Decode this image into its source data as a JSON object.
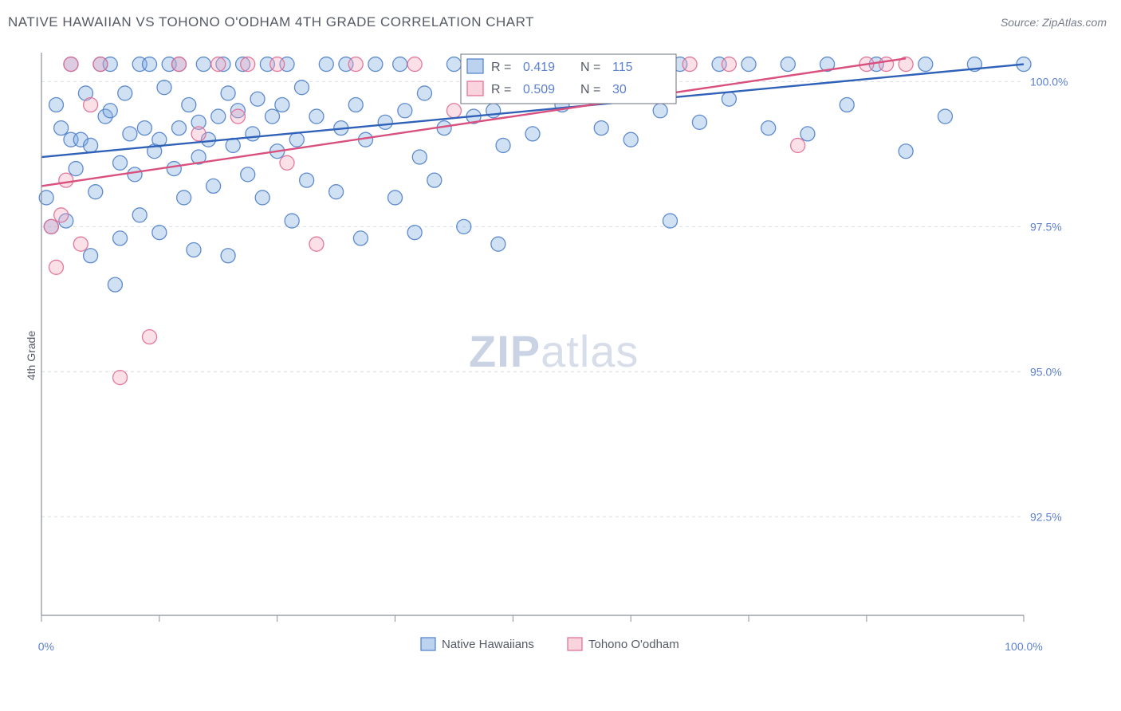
{
  "chart": {
    "type": "scatter",
    "title": "NATIVE HAWAIIAN VS TOHONO O'ODHAM 4TH GRADE CORRELATION CHART",
    "source_label": "Source: ZipAtlas.com",
    "ylabel": "4th Grade",
    "watermark_bold": "ZIP",
    "watermark_light": "atlas",
    "background_color": "#ffffff",
    "grid_color": "#d9dde3",
    "axis_color": "#8a8f99",
    "tick_label_color": "#5b7fd1",
    "xlim": [
      0,
      100
    ],
    "ylim": [
      90.8,
      100.5
    ],
    "x_tick_positions": [
      0,
      12,
      24,
      36,
      48,
      60,
      72,
      84,
      100
    ],
    "x_tick_labels_shown": {
      "0": "0.0%",
      "100": "100.0%"
    },
    "y_ticks": [
      {
        "v": 100.0,
        "label": "100.0%"
      },
      {
        "v": 97.5,
        "label": "97.5%"
      },
      {
        "v": 95.0,
        "label": "95.0%"
      },
      {
        "v": 92.5,
        "label": "92.5%"
      }
    ],
    "marker_radius": 9,
    "series": [
      {
        "name": "Native Hawaiians",
        "fill": "#7aa8e0",
        "stroke": "#4f7fc9",
        "line_color": "#2f61b8",
        "R": "0.419",
        "N": "115",
        "trend": {
          "x1": 0,
          "y1": 98.7,
          "x2": 100,
          "y2": 100.3
        },
        "points": [
          [
            0.5,
            98.0
          ],
          [
            1,
            97.5
          ],
          [
            1.5,
            99.6
          ],
          [
            2,
            99.2
          ],
          [
            2.5,
            97.6
          ],
          [
            3,
            99.0
          ],
          [
            3,
            100.3
          ],
          [
            3.5,
            98.5
          ],
          [
            4,
            99.0
          ],
          [
            4.5,
            99.8
          ],
          [
            5,
            98.9
          ],
          [
            5,
            97.0
          ],
          [
            5.5,
            98.1
          ],
          [
            6,
            100.3
          ],
          [
            6.5,
            99.4
          ],
          [
            7,
            99.5
          ],
          [
            7,
            100.3
          ],
          [
            7.5,
            96.5
          ],
          [
            8,
            97.3
          ],
          [
            8,
            98.6
          ],
          [
            8.5,
            99.8
          ],
          [
            9,
            99.1
          ],
          [
            9.5,
            98.4
          ],
          [
            10,
            100.3
          ],
          [
            10,
            97.7
          ],
          [
            10.5,
            99.2
          ],
          [
            11,
            100.3
          ],
          [
            11.5,
            98.8
          ],
          [
            12,
            99.0
          ],
          [
            12,
            97.4
          ],
          [
            12.5,
            99.9
          ],
          [
            13,
            100.3
          ],
          [
            13.5,
            98.5
          ],
          [
            14,
            99.2
          ],
          [
            14,
            100.3
          ],
          [
            14.5,
            98.0
          ],
          [
            15,
            99.6
          ],
          [
            15.5,
            97.1
          ],
          [
            16,
            99.3
          ],
          [
            16,
            98.7
          ],
          [
            16.5,
            100.3
          ],
          [
            17,
            99.0
          ],
          [
            17.5,
            98.2
          ],
          [
            18,
            99.4
          ],
          [
            18.5,
            100.3
          ],
          [
            19,
            99.8
          ],
          [
            19,
            97.0
          ],
          [
            19.5,
            98.9
          ],
          [
            20,
            99.5
          ],
          [
            20.5,
            100.3
          ],
          [
            21,
            98.4
          ],
          [
            21.5,
            99.1
          ],
          [
            22,
            99.7
          ],
          [
            22.5,
            98.0
          ],
          [
            23,
            100.3
          ],
          [
            23.5,
            99.4
          ],
          [
            24,
            98.8
          ],
          [
            24.5,
            99.6
          ],
          [
            25,
            100.3
          ],
          [
            25.5,
            97.6
          ],
          [
            26,
            99.0
          ],
          [
            26.5,
            99.9
          ],
          [
            27,
            98.3
          ],
          [
            28,
            99.4
          ],
          [
            29,
            100.3
          ],
          [
            30,
            98.1
          ],
          [
            30.5,
            99.2
          ],
          [
            31,
            100.3
          ],
          [
            32,
            99.6
          ],
          [
            32.5,
            97.3
          ],
          [
            33,
            99.0
          ],
          [
            34,
            100.3
          ],
          [
            35,
            99.3
          ],
          [
            36,
            98.0
          ],
          [
            36.5,
            100.3
          ],
          [
            37,
            99.5
          ],
          [
            38,
            97.4
          ],
          [
            38.5,
            98.7
          ],
          [
            39,
            99.8
          ],
          [
            40,
            98.3
          ],
          [
            41,
            99.2
          ],
          [
            42,
            100.3
          ],
          [
            43,
            97.5
          ],
          [
            44,
            99.4
          ],
          [
            45,
            100.3
          ],
          [
            46,
            99.5
          ],
          [
            46.5,
            97.2
          ],
          [
            47,
            98.9
          ],
          [
            48,
            100.3
          ],
          [
            50,
            99.1
          ],
          [
            52,
            100.3
          ],
          [
            53,
            99.6
          ],
          [
            55,
            100.3
          ],
          [
            57,
            99.2
          ],
          [
            58,
            100.3
          ],
          [
            60,
            99.0
          ],
          [
            62,
            100.3
          ],
          [
            63,
            99.5
          ],
          [
            64,
            97.6
          ],
          [
            65,
            100.3
          ],
          [
            67,
            99.3
          ],
          [
            69,
            100.3
          ],
          [
            70,
            99.7
          ],
          [
            72,
            100.3
          ],
          [
            74,
            99.2
          ],
          [
            76,
            100.3
          ],
          [
            78,
            99.1
          ],
          [
            80,
            100.3
          ],
          [
            82,
            99.6
          ],
          [
            85,
            100.3
          ],
          [
            88,
            98.8
          ],
          [
            90,
            100.3
          ],
          [
            92,
            99.4
          ],
          [
            95,
            100.3
          ],
          [
            100,
            100.3
          ]
        ]
      },
      {
        "name": "Tohono O'odham",
        "fill": "#f3a7bd",
        "stroke": "#e06b92",
        "line_color": "#d94f7e",
        "R": "0.509",
        "N": "30",
        "trend": {
          "x1": 0,
          "y1": 98.2,
          "x2": 88,
          "y2": 100.4
        },
        "points": [
          [
            1,
            97.5
          ],
          [
            1.5,
            96.8
          ],
          [
            2,
            97.7
          ],
          [
            2.5,
            98.3
          ],
          [
            3,
            100.3
          ],
          [
            4,
            97.2
          ],
          [
            5,
            99.6
          ],
          [
            6,
            100.3
          ],
          [
            8,
            94.9
          ],
          [
            11,
            95.6
          ],
          [
            14,
            100.3
          ],
          [
            16,
            99.1
          ],
          [
            18,
            100.3
          ],
          [
            20,
            99.4
          ],
          [
            21,
            100.3
          ],
          [
            24,
            100.3
          ],
          [
            25,
            98.6
          ],
          [
            28,
            97.2
          ],
          [
            32,
            100.3
          ],
          [
            38,
            100.3
          ],
          [
            42,
            99.5
          ],
          [
            46,
            100.3
          ],
          [
            48,
            100.3
          ],
          [
            55,
            100.3
          ],
          [
            66,
            100.3
          ],
          [
            70,
            100.3
          ],
          [
            77,
            98.9
          ],
          [
            84,
            100.3
          ],
          [
            86,
            100.3
          ],
          [
            88,
            100.3
          ]
        ]
      }
    ],
    "stats_legend": {
      "box_stroke": "#6b7280",
      "R_label": "R =",
      "N_label": "N ="
    },
    "bottom_legend": {
      "swatch_size": 16
    }
  }
}
